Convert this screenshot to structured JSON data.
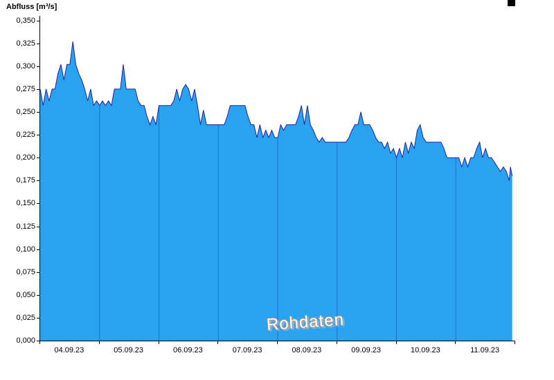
{
  "chart_data": {
    "type": "area",
    "title": "Abfluss [m³/s]",
    "ylabel": "Abfluss [m³/s]",
    "watermark": "Rohdaten",
    "x_range": [
      0,
      8
    ],
    "ylim": [
      0,
      0.355
    ],
    "grid": "vertical-day-boundaries",
    "legend": "none",
    "colors": {
      "fill": "#2aa3ef",
      "line": "#1c22ae",
      "grid": "#1c6fd1",
      "axis": "#000000"
    },
    "y_ticks": [
      {
        "v": 0.0,
        "label": "0,000"
      },
      {
        "v": 0.025,
        "label": "0,025"
      },
      {
        "v": 0.05,
        "label": "0,050"
      },
      {
        "v": 0.075,
        "label": "0,075"
      },
      {
        "v": 0.1,
        "label": "0,100"
      },
      {
        "v": 0.125,
        "label": "0,125"
      },
      {
        "v": 0.15,
        "label": "0,150"
      },
      {
        "v": 0.175,
        "label": "0,175"
      },
      {
        "v": 0.2,
        "label": "0,200"
      },
      {
        "v": 0.225,
        "label": "0,225"
      },
      {
        "v": 0.25,
        "label": "0,250"
      },
      {
        "v": 0.275,
        "label": "0,275"
      },
      {
        "v": 0.3,
        "label": "0,300"
      },
      {
        "v": 0.325,
        "label": "0,325"
      },
      {
        "v": 0.35,
        "label": "0,350"
      }
    ],
    "x_tick_labels": [
      "04.09.23",
      "05.09.23",
      "06.09.23",
      "07.09.23",
      "08.09.23",
      "09.09.23",
      "10.09.23",
      "11.09.23"
    ],
    "day_boundaries": [
      0,
      1,
      2,
      3,
      4,
      5,
      6,
      7,
      8
    ],
    "series": [
      {
        "name": "Abfluss",
        "unit": "m³/s",
        "points": [
          [
            0,
            0.275
          ],
          [
            0.05,
            0.257
          ],
          [
            0.1,
            0.275
          ],
          [
            0.15,
            0.262
          ],
          [
            0.2,
            0.275
          ],
          [
            0.25,
            0.275
          ],
          [
            0.3,
            0.292
          ],
          [
            0.35,
            0.302
          ],
          [
            0.4,
            0.285
          ],
          [
            0.45,
            0.302
          ],
          [
            0.5,
            0.302
          ],
          [
            0.55,
            0.327
          ],
          [
            0.6,
            0.302
          ],
          [
            0.65,
            0.292
          ],
          [
            0.7,
            0.285
          ],
          [
            0.75,
            0.275
          ],
          [
            0.8,
            0.262
          ],
          [
            0.85,
            0.275
          ],
          [
            0.9,
            0.257
          ],
          [
            0.95,
            0.262
          ],
          [
            1,
            0.257
          ],
          [
            1.05,
            0.262
          ],
          [
            1.1,
            0.257
          ],
          [
            1.15,
            0.262
          ],
          [
            1.2,
            0.257
          ],
          [
            1.25,
            0.275
          ],
          [
            1.3,
            0.275
          ],
          [
            1.35,
            0.275
          ],
          [
            1.4,
            0.302
          ],
          [
            1.45,
            0.275
          ],
          [
            1.5,
            0.275
          ],
          [
            1.55,
            0.275
          ],
          [
            1.6,
            0.275
          ],
          [
            1.65,
            0.262
          ],
          [
            1.7,
            0.257
          ],
          [
            1.75,
            0.257
          ],
          [
            1.8,
            0.245
          ],
          [
            1.85,
            0.236
          ],
          [
            1.9,
            0.245
          ],
          [
            1.95,
            0.236
          ],
          [
            2,
            0.257
          ],
          [
            2.05,
            0.257
          ],
          [
            2.1,
            0.257
          ],
          [
            2.15,
            0.257
          ],
          [
            2.2,
            0.257
          ],
          [
            2.25,
            0.262
          ],
          [
            2.3,
            0.275
          ],
          [
            2.35,
            0.262
          ],
          [
            2.4,
            0.275
          ],
          [
            2.45,
            0.28
          ],
          [
            2.5,
            0.275
          ],
          [
            2.55,
            0.262
          ],
          [
            2.6,
            0.275
          ],
          [
            2.65,
            0.257
          ],
          [
            2.7,
            0.236
          ],
          [
            2.75,
            0.252
          ],
          [
            2.8,
            0.236
          ],
          [
            2.85,
            0.236
          ],
          [
            2.9,
            0.236
          ],
          [
            2.95,
            0.236
          ],
          [
            3,
            0.236
          ],
          [
            3.05,
            0.236
          ],
          [
            3.1,
            0.236
          ],
          [
            3.15,
            0.245
          ],
          [
            3.2,
            0.257
          ],
          [
            3.25,
            0.257
          ],
          [
            3.3,
            0.257
          ],
          [
            3.35,
            0.257
          ],
          [
            3.4,
            0.257
          ],
          [
            3.45,
            0.257
          ],
          [
            3.5,
            0.245
          ],
          [
            3.55,
            0.236
          ],
          [
            3.6,
            0.236
          ],
          [
            3.65,
            0.222
          ],
          [
            3.7,
            0.236
          ],
          [
            3.75,
            0.222
          ],
          [
            3.8,
            0.23
          ],
          [
            3.85,
            0.222
          ],
          [
            3.9,
            0.23
          ],
          [
            3.95,
            0.222
          ],
          [
            4,
            0.222
          ],
          [
            4.05,
            0.236
          ],
          [
            4.1,
            0.23
          ],
          [
            4.15,
            0.236
          ],
          [
            4.2,
            0.236
          ],
          [
            4.25,
            0.236
          ],
          [
            4.3,
            0.236
          ],
          [
            4.35,
            0.245
          ],
          [
            4.4,
            0.257
          ],
          [
            4.45,
            0.236
          ],
          [
            4.5,
            0.257
          ],
          [
            4.55,
            0.236
          ],
          [
            4.6,
            0.23
          ],
          [
            4.65,
            0.222
          ],
          [
            4.7,
            0.217
          ],
          [
            4.75,
            0.222
          ],
          [
            4.8,
            0.217
          ],
          [
            4.85,
            0.217
          ],
          [
            4.9,
            0.217
          ],
          [
            4.95,
            0.217
          ],
          [
            5,
            0.217
          ],
          [
            5.05,
            0.217
          ],
          [
            5.1,
            0.217
          ],
          [
            5.15,
            0.217
          ],
          [
            5.2,
            0.222
          ],
          [
            5.25,
            0.23
          ],
          [
            5.3,
            0.236
          ],
          [
            5.35,
            0.236
          ],
          [
            5.4,
            0.25
          ],
          [
            5.45,
            0.236
          ],
          [
            5.5,
            0.236
          ],
          [
            5.55,
            0.236
          ],
          [
            5.6,
            0.23
          ],
          [
            5.65,
            0.222
          ],
          [
            5.7,
            0.217
          ],
          [
            5.75,
            0.217
          ],
          [
            5.8,
            0.21
          ],
          [
            5.85,
            0.217
          ],
          [
            5.9,
            0.205
          ],
          [
            5.95,
            0.21
          ],
          [
            6,
            0.2
          ],
          [
            6.05,
            0.21
          ],
          [
            6.1,
            0.2
          ],
          [
            6.15,
            0.217
          ],
          [
            6.2,
            0.205
          ],
          [
            6.25,
            0.217
          ],
          [
            6.3,
            0.21
          ],
          [
            6.35,
            0.23
          ],
          [
            6.4,
            0.236
          ],
          [
            6.45,
            0.222
          ],
          [
            6.5,
            0.217
          ],
          [
            6.55,
            0.217
          ],
          [
            6.6,
            0.217
          ],
          [
            6.65,
            0.217
          ],
          [
            6.7,
            0.217
          ],
          [
            6.75,
            0.217
          ],
          [
            6.8,
            0.21
          ],
          [
            6.85,
            0.2
          ],
          [
            6.9,
            0.2
          ],
          [
            6.95,
            0.2
          ],
          [
            7,
            0.2
          ],
          [
            7.05,
            0.2
          ],
          [
            7.1,
            0.19
          ],
          [
            7.15,
            0.2
          ],
          [
            7.2,
            0.19
          ],
          [
            7.25,
            0.2
          ],
          [
            7.3,
            0.2
          ],
          [
            7.35,
            0.21
          ],
          [
            7.4,
            0.217
          ],
          [
            7.45,
            0.2
          ],
          [
            7.5,
            0.21
          ],
          [
            7.55,
            0.2
          ],
          [
            7.6,
            0.2
          ],
          [
            7.65,
            0.195
          ],
          [
            7.7,
            0.19
          ],
          [
            7.75,
            0.185
          ],
          [
            7.8,
            0.19
          ],
          [
            7.85,
            0.185
          ],
          [
            7.9,
            0.175
          ],
          [
            7.92,
            0.19
          ],
          [
            7.95,
            0.18
          ]
        ]
      }
    ]
  }
}
